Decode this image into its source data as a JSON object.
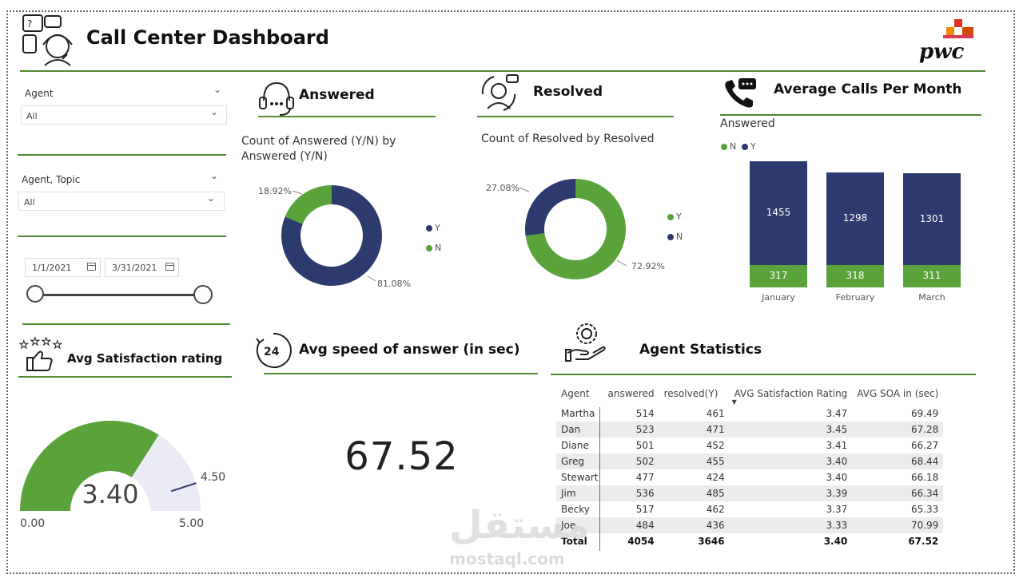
{
  "header": {
    "title": "Call Center Dashboard",
    "logo_text": "pwc"
  },
  "slicers": {
    "agent": {
      "label": "Agent",
      "value": "All"
    },
    "agent_topic": {
      "label": "Agent, Topic",
      "value": "All"
    },
    "date_range": {
      "start": "1/1/2021",
      "end": "3/31/2021",
      "slider_start_fraction": 0,
      "slider_end_fraction": 1
    }
  },
  "answered": {
    "title": "Answered",
    "chart_title": "Count of Answered (Y/N) by Answered (Y/N)",
    "legend": [
      "Y",
      "N"
    ],
    "pct_n": "18.92%",
    "pct_y": "81.08%"
  },
  "resolved": {
    "title": "Resolved",
    "chart_title": "Count of Resolved by Resolved",
    "legend": [
      "Y",
      "N"
    ],
    "pct_n": "27.08%",
    "pct_y": "72.92%"
  },
  "calls_per_month": {
    "title": "Average Calls Per Month",
    "legend_title": "Answered",
    "legend": [
      "N",
      "Y"
    ]
  },
  "satisfaction": {
    "title": "Avg Satisfaction rating",
    "value": "3.40",
    "min": "0.00",
    "max": "5.00",
    "target": "4.50"
  },
  "speed": {
    "title": "Avg speed of answer (in sec)",
    "value": "67.52"
  },
  "agent_stats": {
    "title": "Agent Statistics",
    "columns": [
      "Agent",
      "answered",
      "resolved(Y)",
      "AVG Satisfaction Rating",
      "AVG SOA in (sec)"
    ],
    "rows": [
      [
        "Martha",
        "514",
        "461",
        "3.47",
        "69.49"
      ],
      [
        "Dan",
        "523",
        "471",
        "3.45",
        "67.28"
      ],
      [
        "Diane",
        "501",
        "452",
        "3.41",
        "66.27"
      ],
      [
        "Greg",
        "502",
        "455",
        "3.40",
        "68.44"
      ],
      [
        "Stewart",
        "477",
        "424",
        "3.40",
        "66.18"
      ],
      [
        "Jim",
        "536",
        "485",
        "3.39",
        "66.34"
      ],
      [
        "Becky",
        "517",
        "462",
        "3.37",
        "65.33"
      ],
      [
        "Joe",
        "484",
        "436",
        "3.33",
        "70.99"
      ]
    ],
    "total": [
      "Total",
      "4054",
      "3646",
      "3.40",
      "67.52"
    ]
  },
  "watermark": {
    "arabic": "مستقل",
    "latin": "mostaql.com"
  },
  "colors": {
    "navy": "#2d3a6e",
    "green": "#5aa23a",
    "rule": "#4f8a2f",
    "gauge_bg": "#ebebf5"
  },
  "chart_data": [
    {
      "type": "pie",
      "title": "Count of Answered (Y/N) by Answered (Y/N)",
      "labels": [
        "Y",
        "N"
      ],
      "values": [
        81.08,
        18.92
      ],
      "donut": true
    },
    {
      "type": "pie",
      "title": "Count of Resolved by Resolved",
      "labels": [
        "Y",
        "N"
      ],
      "values": [
        72.92,
        27.08
      ],
      "donut": true
    },
    {
      "type": "bar",
      "stacked": true,
      "categories": [
        "January",
        "February",
        "March"
      ],
      "legend_title": "Answered",
      "series": [
        {
          "name": "N",
          "values": [
            317,
            318,
            311
          ]
        },
        {
          "name": "Y",
          "values": [
            1455,
            1298,
            1301
          ]
        }
      ]
    },
    {
      "type": "gauge",
      "title": "Avg Satisfaction rating",
      "value": 3.4,
      "min": 0,
      "max": 5,
      "target": 4.5
    }
  ]
}
